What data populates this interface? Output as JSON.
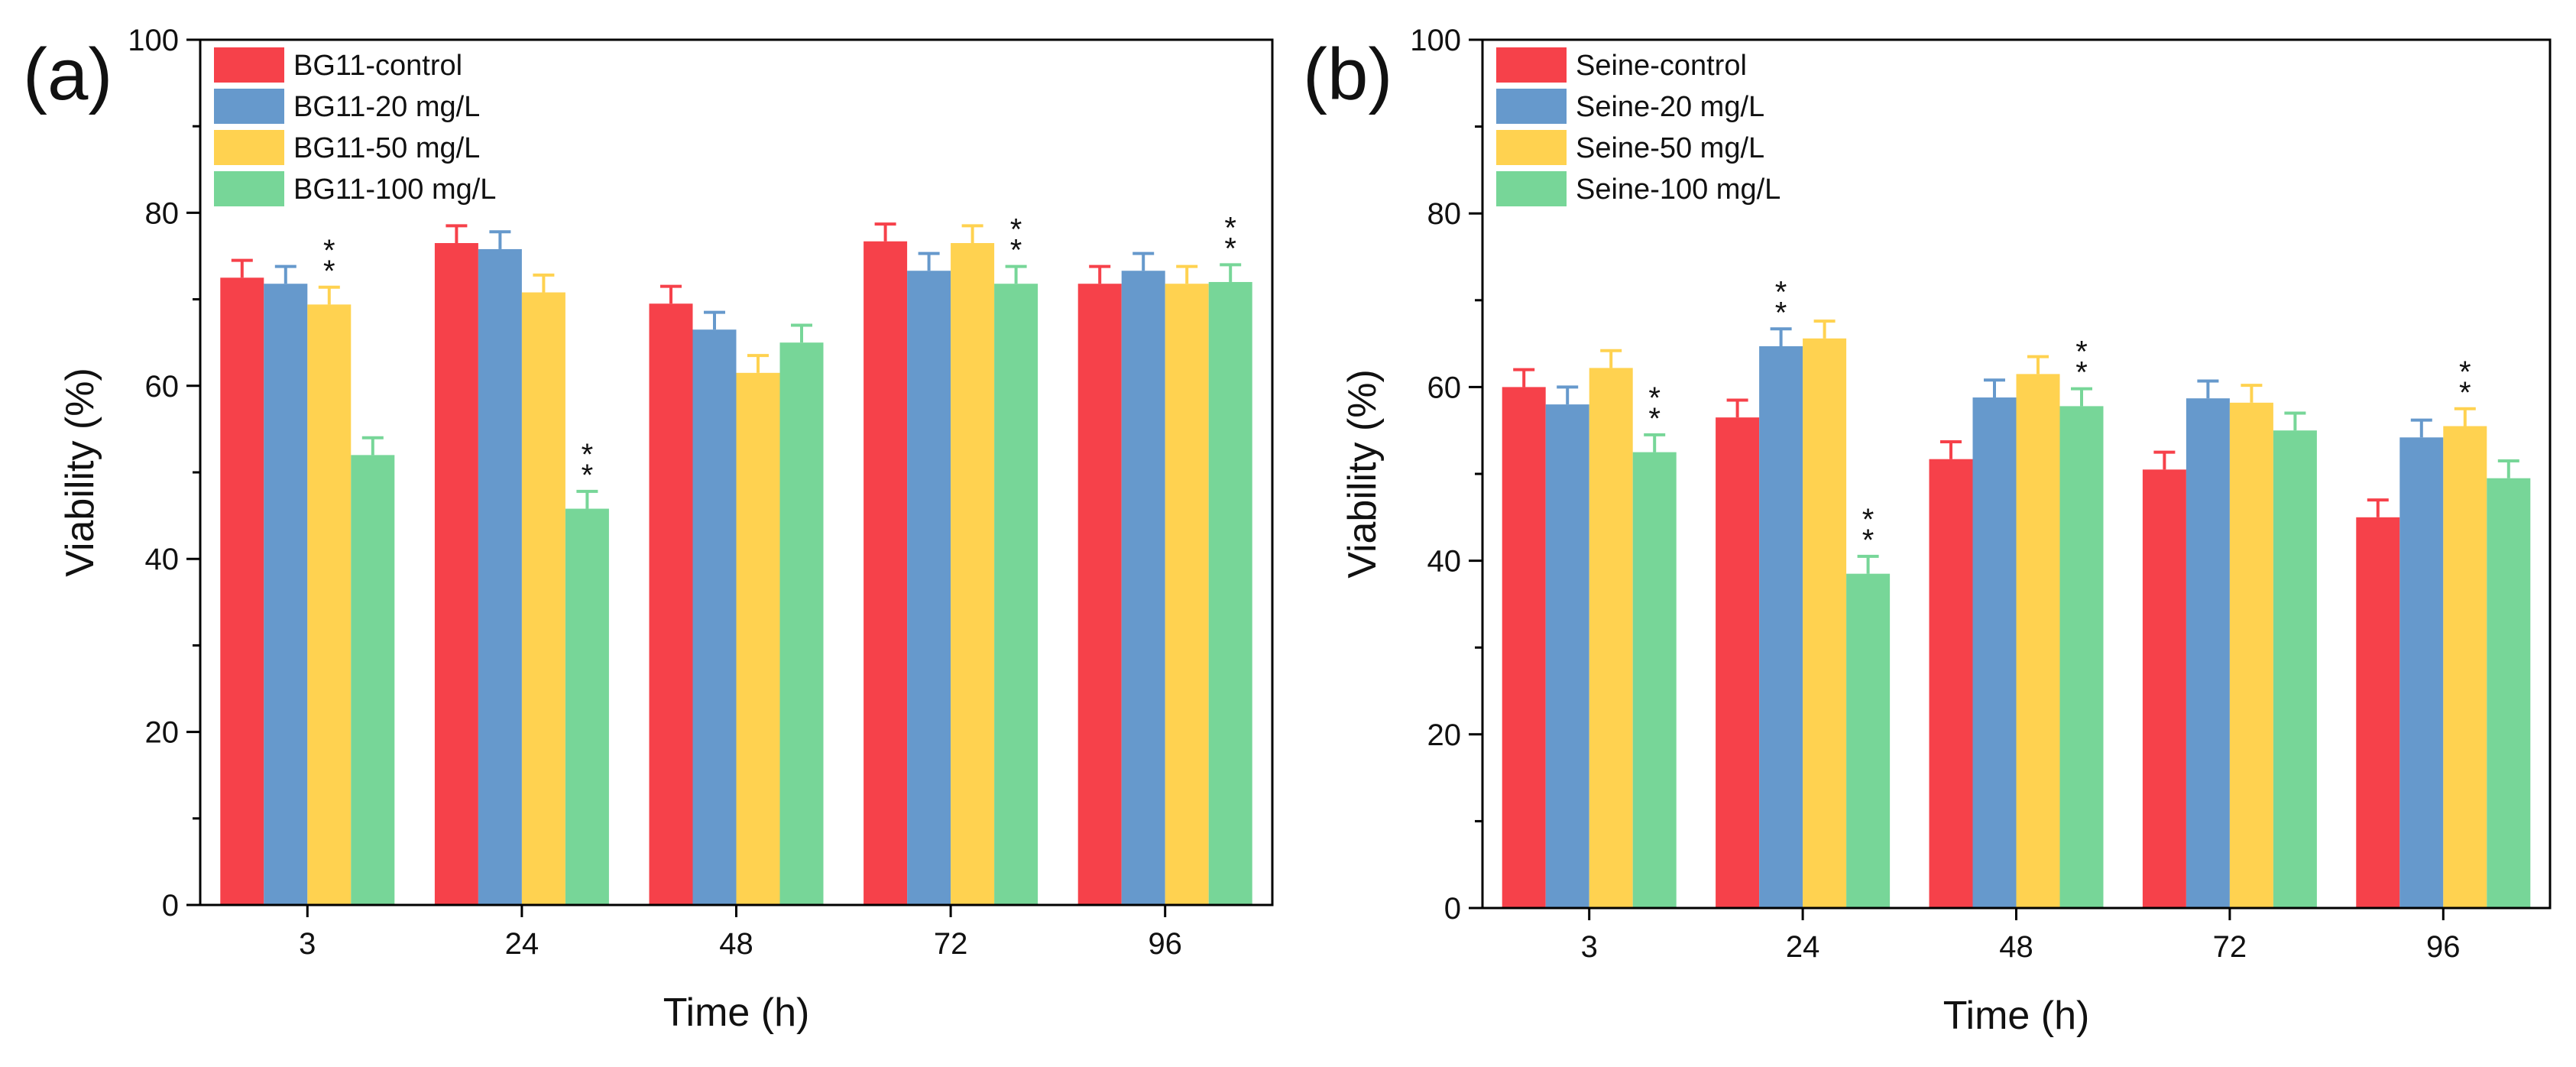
{
  "chart_data": [
    {
      "panel_label": "(a)",
      "type": "bar",
      "categories": [
        "3",
        "24",
        "48",
        "72",
        "96"
      ],
      "xlabel": "Time (h)",
      "ylabel": "Viability (%)",
      "ylim": [
        0,
        100
      ],
      "yticks": [
        "0",
        "20",
        "40",
        "60",
        "80",
        "100"
      ],
      "legend_position": "top-left",
      "significance_marker": "*\n*",
      "series": [
        {
          "name": "BG11-control",
          "color": "#f6414a",
          "values": [
            72.5,
            76.5,
            69.5,
            76.7,
            71.8
          ],
          "errors": [
            2.0,
            2.0,
            2.0,
            2.0,
            2.0
          ],
          "significant": [
            false,
            false,
            false,
            false,
            false
          ]
        },
        {
          "name": "BG11-20 mg/L",
          "color": "#6699cc",
          "values": [
            71.8,
            75.8,
            66.5,
            73.3,
            73.3
          ],
          "errors": [
            2.0,
            2.0,
            2.0,
            2.0,
            2.0
          ],
          "significant": [
            false,
            false,
            false,
            false,
            false
          ]
        },
        {
          "name": "BG11-50 mg/L",
          "color": "#ffd250",
          "values": [
            69.4,
            70.8,
            61.5,
            76.5,
            71.8
          ],
          "errors": [
            2.0,
            2.0,
            2.0,
            2.0,
            2.0
          ],
          "significant": [
            true,
            false,
            false,
            false,
            false
          ]
        },
        {
          "name": "BG11-100 mg/L",
          "color": "#77d698",
          "values": [
            52.0,
            45.8,
            65.0,
            71.8,
            72.0
          ],
          "errors": [
            2.0,
            2.0,
            2.0,
            2.0,
            2.0
          ],
          "significant": [
            false,
            true,
            false,
            true,
            true
          ]
        }
      ]
    },
    {
      "panel_label": "(b)",
      "type": "bar",
      "categories": [
        "3",
        "24",
        "48",
        "72",
        "96"
      ],
      "xlabel": "Time (h)",
      "ylabel": "Viability (%)",
      "ylim": [
        0,
        100
      ],
      "yticks": [
        "0",
        "20",
        "40",
        "60",
        "80",
        "100"
      ],
      "legend_position": "top-left",
      "significance_marker": "*\n*",
      "series": [
        {
          "name": "Seine-control",
          "color": "#f6414a",
          "values": [
            60.0,
            56.5,
            51.7,
            50.5,
            45.0
          ],
          "errors": [
            2.0,
            2.0,
            2.0,
            2.0,
            2.0
          ],
          "significant": [
            false,
            false,
            false,
            false,
            false
          ]
        },
        {
          "name": "Seine-20 mg/L",
          "color": "#6699cc",
          "values": [
            58.0,
            64.7,
            58.8,
            58.7,
            54.2
          ],
          "errors": [
            2.0,
            2.0,
            2.0,
            2.0,
            2.0
          ],
          "significant": [
            false,
            true,
            false,
            false,
            false
          ]
        },
        {
          "name": "Seine-50 mg/L",
          "color": "#ffd250",
          "values": [
            62.2,
            65.6,
            61.5,
            58.2,
            55.5
          ],
          "errors": [
            2.0,
            2.0,
            2.0,
            2.0,
            2.0
          ],
          "significant": [
            false,
            false,
            false,
            false,
            true
          ]
        },
        {
          "name": "Seine-100 mg/L",
          "color": "#77d698",
          "values": [
            52.5,
            38.5,
            57.8,
            55.0,
            49.5
          ],
          "errors": [
            2.0,
            2.0,
            2.0,
            2.0,
            2.0
          ],
          "significant": [
            true,
            true,
            true,
            false,
            false
          ]
        }
      ]
    }
  ]
}
